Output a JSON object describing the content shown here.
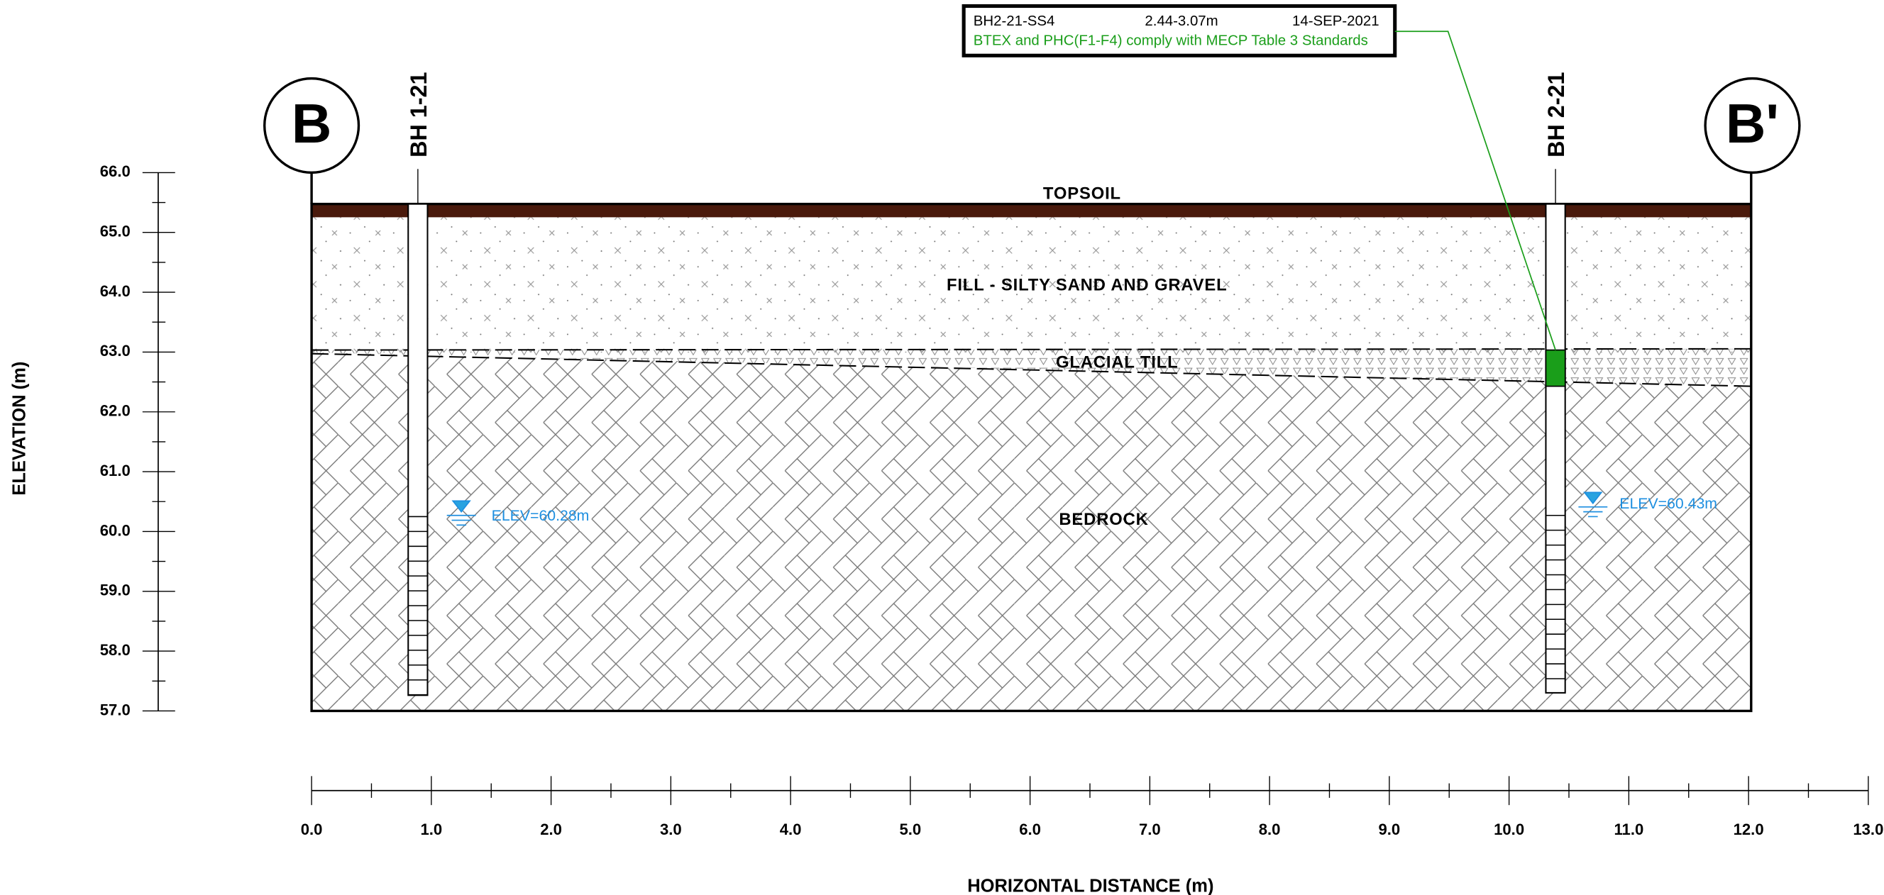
{
  "section": {
    "left_label": "B",
    "right_label": "B'"
  },
  "boreholes": [
    {
      "label": "BH 1-21",
      "water_level": "ELEV=60.28m"
    },
    {
      "label": "BH 2-21",
      "water_level": "ELEV=60.43m"
    }
  ],
  "callout": {
    "sample": "BH2-21-SS4",
    "depth": "2.44-3.07m",
    "date": "14-SEP-2021",
    "result": "BTEX and PHC(F1-F4) comply with MECP Table 3 Standards"
  },
  "layers": [
    "TOPSOIL",
    "FILL - SILTY SAND AND GRAVEL",
    "GLACIAL TILL",
    "BEDROCK"
  ],
  "axes": {
    "y": {
      "title": "ELEVATION (m)",
      "ticks": [
        "66.0",
        "65.0",
        "64.0",
        "63.0",
        "62.0",
        "61.0",
        "60.0",
        "59.0",
        "58.0",
        "57.0"
      ]
    },
    "x": {
      "title": "HORIZONTAL DISTANCE (m)",
      "ticks": [
        "0.0",
        "1.0",
        "2.0",
        "3.0",
        "4.0",
        "5.0",
        "6.0",
        "7.0",
        "8.0",
        "9.0",
        "10.0",
        "11.0",
        "12.0",
        "13.0"
      ]
    }
  }
}
